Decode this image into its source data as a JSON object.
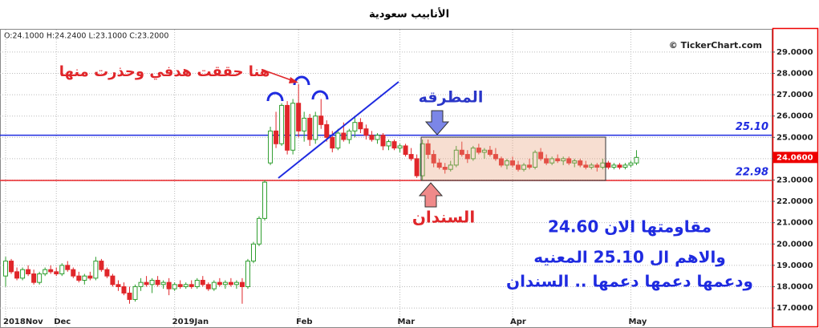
{
  "chart_data": {
    "type": "candlestick",
    "title": "الأنابيب سعودية",
    "ohlc_header": "O:24.1000  H:24.2400  L:23.1000  C:23.2000",
    "source": "© TickerChart.com",
    "up_color": "#2e9e2e",
    "down_color": "#e0262a",
    "grid": true,
    "xlim": [
      -1,
      136
    ],
    "xticks": [
      {
        "value": 0,
        "label": "2018Nov"
      },
      {
        "value": 9,
        "label": "Dec"
      },
      {
        "value": 30,
        "label": "2019Jan"
      },
      {
        "value": 52,
        "label": "Feb"
      },
      {
        "value": 70,
        "label": "Mar"
      },
      {
        "value": 90,
        "label": "Apr"
      },
      {
        "value": 111,
        "label": "May"
      }
    ],
    "ylim": [
      16.1,
      30.05
    ],
    "yticks": [
      {
        "value": 17,
        "label": "17.0000"
      },
      {
        "value": 18,
        "label": "18.0000"
      },
      {
        "value": 19,
        "label": "19.0000"
      },
      {
        "value": 20,
        "label": "20.0000"
      },
      {
        "value": 21,
        "label": "21.0000"
      },
      {
        "value": 22,
        "label": "22.0000"
      },
      {
        "value": 23,
        "label": "23.0000"
      },
      {
        "value": 24,
        "label": "24.0000"
      },
      {
        "value": 25,
        "label": "25.0000"
      },
      {
        "value": 26,
        "label": "26.0000"
      },
      {
        "value": 27,
        "label": "27.0000"
      },
      {
        "value": 28,
        "label": "28.0000"
      },
      {
        "value": 29,
        "label": "29.0000"
      }
    ],
    "lines": [
      {
        "value": 25.1,
        "label": "25.10",
        "color": "#1f2be0"
      },
      {
        "value": 22.98,
        "label": "22.98",
        "color": "#e8262a"
      }
    ],
    "last_price": {
      "value": 24.06,
      "label": "24.0600"
    },
    "annotations": [
      "هنا حققت هدفي وحذرت منها",
      "المطرقه",
      "السندان",
      "مقاومتها الان 24.60",
      "والاهم ال 25.10 المعنيه",
      "ودعمها دعمها دعمها .. السندان"
    ],
    "candles": [
      [
        18.5,
        19.4,
        18.0,
        19.2
      ],
      [
        19.2,
        19.3,
        18.6,
        18.7
      ],
      [
        18.7,
        18.9,
        18.3,
        18.4
      ],
      [
        18.4,
        18.9,
        18.3,
        18.8
      ],
      [
        18.8,
        19.0,
        18.5,
        18.6
      ],
      [
        18.6,
        18.8,
        18.1,
        18.2
      ],
      [
        18.2,
        18.7,
        18.1,
        18.6
      ],
      [
        18.6,
        18.9,
        18.5,
        18.8
      ],
      [
        18.8,
        19.0,
        18.6,
        18.7
      ],
      [
        18.7,
        18.9,
        18.5,
        18.6
      ],
      [
        18.6,
        19.1,
        18.5,
        19.0
      ],
      [
        19.0,
        19.2,
        18.7,
        18.8
      ],
      [
        18.8,
        18.9,
        18.4,
        18.5
      ],
      [
        18.5,
        18.7,
        18.2,
        18.3
      ],
      [
        18.3,
        18.6,
        18.1,
        18.5
      ],
      [
        18.5,
        18.7,
        18.3,
        18.4
      ],
      [
        18.4,
        19.4,
        18.3,
        19.2
      ],
      [
        19.2,
        19.3,
        18.7,
        18.8
      ],
      [
        18.8,
        18.9,
        18.4,
        18.5
      ],
      [
        18.5,
        18.6,
        18.0,
        18.1
      ],
      [
        18.1,
        18.3,
        17.8,
        18.0
      ],
      [
        18.0,
        18.2,
        17.6,
        17.7
      ],
      [
        17.7,
        18.0,
        17.2,
        17.4
      ],
      [
        17.4,
        18.1,
        17.3,
        18.0
      ],
      [
        18.0,
        18.4,
        17.8,
        18.2
      ],
      [
        18.2,
        18.5,
        18.0,
        18.1
      ],
      [
        18.1,
        18.4,
        17.7,
        18.3
      ],
      [
        18.3,
        18.5,
        18.0,
        18.1
      ],
      [
        18.1,
        18.3,
        17.9,
        18.2
      ],
      [
        18.2,
        18.4,
        17.6,
        17.9
      ],
      [
        17.9,
        18.2,
        17.8,
        18.1
      ],
      [
        18.1,
        18.3,
        17.9,
        18.0
      ],
      [
        18.0,
        18.2,
        17.9,
        18.1
      ],
      [
        18.1,
        18.3,
        17.9,
        18.0
      ],
      [
        18.0,
        18.4,
        17.9,
        18.3
      ],
      [
        18.3,
        18.5,
        18.0,
        18.1
      ],
      [
        18.1,
        18.2,
        17.8,
        17.9
      ],
      [
        17.9,
        18.3,
        17.8,
        18.2
      ],
      [
        18.2,
        18.4,
        18.0,
        18.1
      ],
      [
        18.1,
        18.3,
        17.9,
        18.2
      ],
      [
        18.2,
        18.4,
        18.0,
        18.1
      ],
      [
        18.1,
        18.3,
        17.9,
        18.2
      ],
      [
        18.2,
        18.4,
        17.2,
        18.0
      ],
      [
        18.0,
        19.3,
        17.9,
        19.2
      ],
      [
        19.2,
        20.1,
        19.1,
        20.0
      ],
      [
        20.0,
        21.3,
        19.9,
        21.2
      ],
      [
        21.2,
        23.0,
        21.1,
        22.9
      ],
      [
        23.8,
        25.5,
        23.7,
        25.3
      ],
      [
        25.3,
        26.2,
        24.5,
        24.7
      ],
      [
        24.7,
        26.6,
        24.6,
        26.5
      ],
      [
        26.5,
        26.7,
        24.2,
        24.4
      ],
      [
        24.4,
        26.8,
        24.2,
        26.6
      ],
      [
        26.6,
        27.5,
        25.0,
        25.3
      ],
      [
        25.3,
        26.2,
        24.8,
        25.9
      ],
      [
        25.9,
        26.1,
        24.6,
        24.9
      ],
      [
        24.9,
        26.2,
        24.7,
        26.0
      ],
      [
        26.0,
        26.8,
        25.4,
        25.6
      ],
      [
        25.6,
        25.8,
        24.8,
        25.0
      ],
      [
        25.0,
        25.3,
        24.3,
        24.5
      ],
      [
        24.5,
        25.4,
        24.4,
        25.2
      ],
      [
        25.2,
        25.7,
        24.8,
        24.9
      ],
      [
        24.9,
        25.4,
        24.7,
        25.3
      ],
      [
        25.3,
        26.0,
        25.0,
        25.7
      ],
      [
        25.7,
        25.9,
        25.2,
        25.4
      ],
      [
        25.4,
        25.6,
        24.9,
        25.1
      ],
      [
        25.1,
        25.3,
        24.8,
        24.9
      ],
      [
        24.9,
        25.2,
        24.7,
        25.1
      ],
      [
        25.1,
        25.2,
        24.4,
        24.6
      ],
      [
        24.6,
        24.9,
        24.4,
        24.8
      ],
      [
        24.8,
        24.9,
        24.4,
        24.5
      ],
      [
        24.5,
        24.7,
        24.3,
        24.6
      ],
      [
        24.6,
        24.7,
        24.1,
        24.2
      ],
      [
        24.2,
        24.5,
        23.9,
        24.0
      ],
      [
        24.0,
        24.2,
        23.1,
        23.2
      ],
      [
        23.2,
        24.9,
        23.0,
        24.7
      ],
      [
        24.7,
        24.9,
        24.0,
        24.2
      ],
      [
        24.2,
        24.4,
        23.6,
        23.8
      ],
      [
        23.8,
        24.0,
        23.5,
        23.6
      ],
      [
        23.6,
        23.8,
        23.3,
        23.5
      ],
      [
        23.5,
        23.9,
        23.4,
        23.7
      ],
      [
        23.7,
        24.6,
        23.6,
        24.4
      ],
      [
        24.4,
        24.8,
        24.1,
        24.2
      ],
      [
        24.2,
        24.4,
        23.8,
        24.0
      ],
      [
        24.0,
        24.6,
        23.9,
        24.5
      ],
      [
        24.5,
        24.7,
        24.2,
        24.3
      ],
      [
        24.3,
        24.5,
        24.0,
        24.4
      ],
      [
        24.4,
        24.6,
        24.1,
        24.2
      ],
      [
        24.2,
        24.5,
        23.9,
        24.0
      ],
      [
        24.0,
        24.1,
        23.6,
        23.7
      ],
      [
        23.7,
        24.0,
        23.5,
        23.9
      ],
      [
        23.9,
        24.1,
        23.6,
        23.7
      ],
      [
        23.7,
        23.9,
        23.4,
        23.5
      ],
      [
        23.5,
        23.8,
        23.4,
        23.7
      ],
      [
        23.7,
        24.0,
        23.5,
        23.6
      ],
      [
        23.6,
        24.4,
        23.5,
        24.3
      ],
      [
        24.3,
        24.5,
        23.9,
        24.0
      ],
      [
        24.0,
        24.2,
        23.7,
        23.8
      ],
      [
        23.8,
        24.1,
        23.7,
        24.0
      ],
      [
        24.0,
        24.2,
        23.8,
        23.9
      ],
      [
        23.9,
        24.1,
        23.7,
        24.0
      ],
      [
        24.0,
        24.1,
        23.7,
        23.8
      ],
      [
        23.8,
        24.0,
        23.6,
        23.9
      ],
      [
        23.9,
        24.0,
        23.6,
        23.7
      ],
      [
        23.7,
        23.9,
        23.5,
        23.6
      ],
      [
        23.6,
        23.8,
        23.5,
        23.7
      ],
      [
        23.7,
        23.8,
        23.4,
        23.6
      ],
      [
        23.6,
        24.0,
        23.5,
        23.8
      ],
      [
        23.8,
        23.9,
        23.5,
        23.6
      ],
      [
        23.6,
        23.8,
        23.5,
        23.7
      ],
      [
        23.7,
        23.8,
        23.5,
        23.6
      ],
      [
        23.6,
        23.8,
        23.5,
        23.7
      ],
      [
        23.7,
        23.9,
        23.6,
        23.8
      ],
      [
        23.8,
        24.4,
        23.7,
        24.06
      ]
    ]
  }
}
